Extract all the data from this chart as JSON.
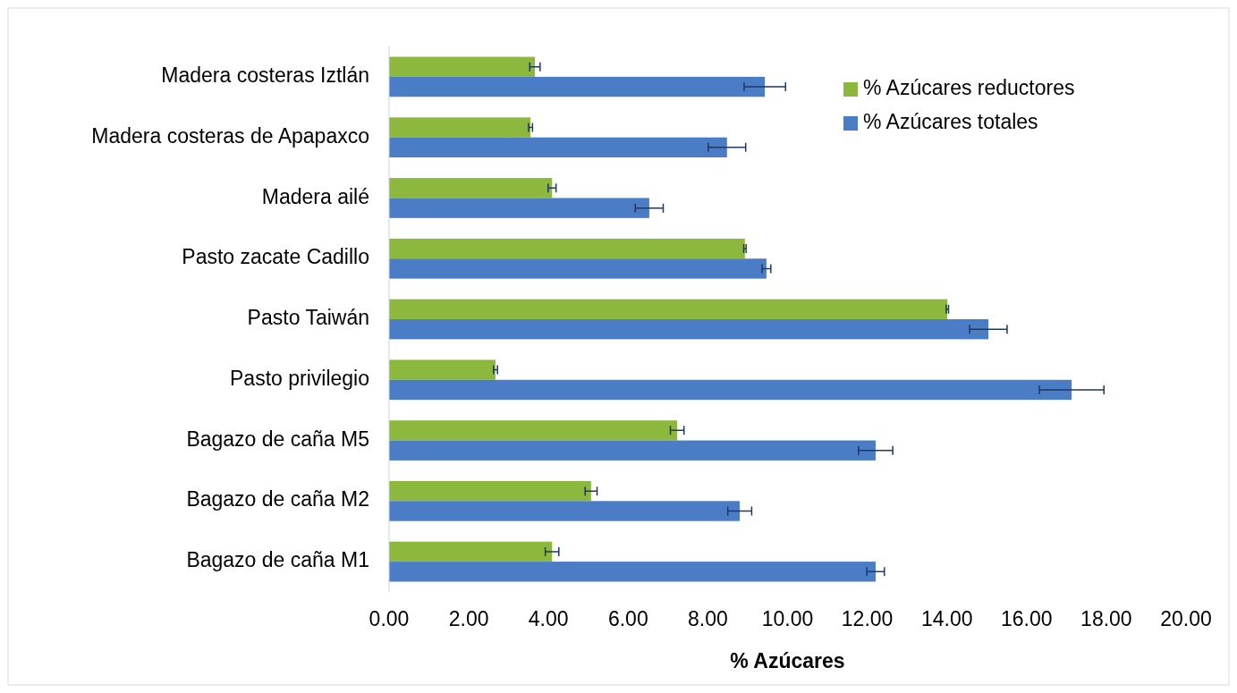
{
  "chart_data": {
    "type": "bar",
    "orientation": "horizontal",
    "xlabel": "% Azúcares",
    "categories": [
      "Madera costeras  Iztlán",
      "Madera costeras de Apapaxco",
      "Madera  ailé ",
      "Pasto zacate Cadillo ",
      "Pasto Taiwán",
      "Pasto privilegio",
      "Bagazo de caña M5 ",
      "Bagazo de caña M2",
      "Bagazo de caña M1"
    ],
    "series": [
      {
        "name": "% Azúcares reductores",
        "color": "#8db83e",
        "values": [
          3.66,
          3.55,
          4.09,
          8.93,
          14.01,
          2.67,
          7.23,
          5.07,
          4.09
        ],
        "errors": [
          0.13,
          0.05,
          0.1,
          0.03,
          0.03,
          0.05,
          0.17,
          0.15,
          0.17
        ]
      },
      {
        "name": "% Azúcares totales",
        "color": "#4a7dc6",
        "values": [
          9.43,
          8.48,
          6.53,
          9.47,
          15.04,
          17.13,
          12.21,
          8.8,
          12.21
        ],
        "errors": [
          0.52,
          0.47,
          0.35,
          0.11,
          0.47,
          0.81,
          0.43,
          0.3,
          0.22
        ]
      }
    ],
    "xlim": [
      0,
      20
    ],
    "xticks": [
      {
        "value": 0,
        "label": "0.00"
      },
      {
        "value": 2,
        "label": "2.00"
      },
      {
        "value": 4,
        "label": "4.00"
      },
      {
        "value": 6,
        "label": "6.00"
      },
      {
        "value": 8,
        "label": "8.00"
      },
      {
        "value": 10,
        "label": "10.00"
      },
      {
        "value": 12,
        "label": "12.00"
      },
      {
        "value": 14,
        "label": "14.00"
      },
      {
        "value": 16,
        "label": "16.00"
      },
      {
        "value": 18,
        "label": "18.00"
      },
      {
        "value": 20,
        "label": "20.00"
      }
    ],
    "legend": "top right",
    "grid": false
  }
}
